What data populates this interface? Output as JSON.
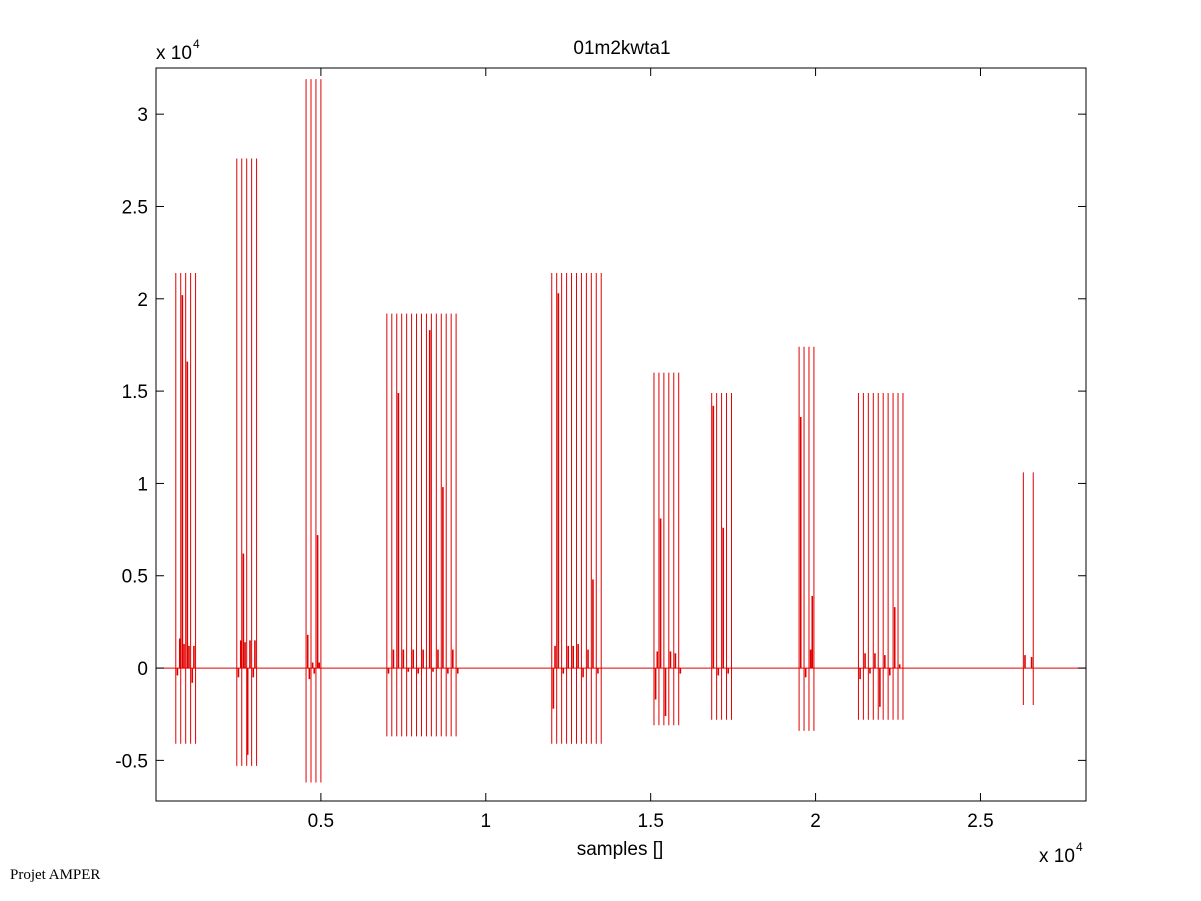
{
  "footer": "Projet AMPER",
  "chart_data": {
    "type": "line",
    "title": "01m2kwta1",
    "xlabel": "samples []",
    "ylabel": "",
    "x_multiplier": "x 10",
    "x_multiplier_exp": "4",
    "y_multiplier": "x 10",
    "y_multiplier_exp": "4",
    "xlim": [
      0,
      28200
    ],
    "ylim": [
      -7200,
      32500
    ],
    "xticks": [
      5000,
      10000,
      15000,
      20000,
      25000
    ],
    "xtick_labels": [
      "0.5",
      "1",
      "1.5",
      "2",
      "2.5"
    ],
    "yticks": [
      -5000,
      0,
      5000,
      10000,
      15000,
      20000,
      25000,
      30000
    ],
    "ytick_labels": [
      "-0.5",
      "0",
      "0.5",
      "1",
      "1.5",
      "2",
      "2.5",
      "3"
    ],
    "grid": false,
    "line_color": "#e00000",
    "axis_color": "#000000",
    "baseline": 0,
    "series": [
      {
        "values": "vertical spike bursts (full-scale segments) and an inner waveform",
        "bursts": [
          {
            "x": [
              600,
              750,
              900,
              1050,
              1200
            ],
            "top": 21400,
            "bottom": -4100
          },
          {
            "x": [
              2450,
              2600,
              2750,
              2900,
              3050
            ],
            "top": 27600,
            "bottom": -5300
          },
          {
            "x": [
              4550,
              4700,
              4850,
              5000
            ],
            "top": 31900,
            "bottom": -6200
          },
          {
            "x": [
              7000,
              7150,
              7300,
              7450,
              7600,
              7750,
              7900,
              8050,
              8200,
              8350,
              8500,
              8650,
              8800,
              8950,
              9100
            ],
            "top": 19200,
            "bottom": -3700
          },
          {
            "x": [
              12000,
              12150,
              12300,
              12450,
              12600,
              12750,
              12900,
              13050,
              13200,
              13350,
              13500
            ],
            "top": 21400,
            "bottom": -4100
          },
          {
            "x": [
              15100,
              15250,
              15400,
              15550,
              15700,
              15850
            ],
            "top": 16000,
            "bottom": -3100
          },
          {
            "x": [
              16850,
              17000,
              17150,
              17300,
              17450
            ],
            "top": 14900,
            "bottom": -2800
          },
          {
            "x": [
              19500,
              19650,
              19800,
              19950
            ],
            "top": 17400,
            "bottom": -3400
          },
          {
            "x": [
              21300,
              21450,
              21600,
              21750,
              21900,
              22050,
              22200,
              22350,
              22500,
              22650
            ],
            "top": 14900,
            "bottom": -2800
          },
          {
            "x": [
              26300,
              26600
            ],
            "top": 10600,
            "bottom": -2000
          }
        ],
        "spikes": [
          {
            "x": 650,
            "v": -400
          },
          {
            "x": 720,
            "v": 1600
          },
          {
            "x": 800,
            "v": 20200
          },
          {
            "x": 850,
            "v": 1300
          },
          {
            "x": 950,
            "v": 16600
          },
          {
            "x": 1000,
            "v": 1200
          },
          {
            "x": 1100,
            "v": -800
          },
          {
            "x": 1150,
            "v": 1200
          },
          {
            "x": 2500,
            "v": -500
          },
          {
            "x": 2570,
            "v": 1500
          },
          {
            "x": 2650,
            "v": 6200
          },
          {
            "x": 2700,
            "v": 1400
          },
          {
            "x": 2780,
            "v": -4700
          },
          {
            "x": 2850,
            "v": 1500
          },
          {
            "x": 2950,
            "v": -500
          },
          {
            "x": 3000,
            "v": 1500
          },
          {
            "x": 4600,
            "v": 1800
          },
          {
            "x": 4650,
            "v": -600
          },
          {
            "x": 4750,
            "v": 300
          },
          {
            "x": 4800,
            "v": -300
          },
          {
            "x": 4900,
            "v": 7200
          },
          {
            "x": 4950,
            "v": 300
          },
          {
            "x": 7050,
            "v": -300
          },
          {
            "x": 7200,
            "v": 1000
          },
          {
            "x": 7350,
            "v": 14900
          },
          {
            "x": 7500,
            "v": 1000
          },
          {
            "x": 7650,
            "v": -200
          },
          {
            "x": 7800,
            "v": 1000
          },
          {
            "x": 7950,
            "v": -300
          },
          {
            "x": 8100,
            "v": 1000
          },
          {
            "x": 8300,
            "v": 18300
          },
          {
            "x": 8400,
            "v": -200
          },
          {
            "x": 8550,
            "v": 1000
          },
          {
            "x": 8700,
            "v": 9800
          },
          {
            "x": 8850,
            "v": -300
          },
          {
            "x": 9000,
            "v": 1000
          },
          {
            "x": 9150,
            "v": -300
          },
          {
            "x": 12050,
            "v": -2200
          },
          {
            "x": 12100,
            "v": 1200
          },
          {
            "x": 12200,
            "v": 20300
          },
          {
            "x": 12350,
            "v": -300
          },
          {
            "x": 12500,
            "v": 1200
          },
          {
            "x": 12650,
            "v": 1200
          },
          {
            "x": 12800,
            "v": 1300
          },
          {
            "x": 12950,
            "v": -500
          },
          {
            "x": 13100,
            "v": 1000
          },
          {
            "x": 13250,
            "v": 4800
          },
          {
            "x": 13400,
            "v": -300
          },
          {
            "x": 15150,
            "v": -1700
          },
          {
            "x": 15200,
            "v": 900
          },
          {
            "x": 15300,
            "v": 8100
          },
          {
            "x": 15450,
            "v": -2600
          },
          {
            "x": 15600,
            "v": 900
          },
          {
            "x": 15750,
            "v": 800
          },
          {
            "x": 15900,
            "v": -300
          },
          {
            "x": 16900,
            "v": 14200
          },
          {
            "x": 17050,
            "v": -400
          },
          {
            "x": 17200,
            "v": 7600
          },
          {
            "x": 17350,
            "v": -300
          },
          {
            "x": 19550,
            "v": 13600
          },
          {
            "x": 19700,
            "v": -500
          },
          {
            "x": 19850,
            "v": 1000
          },
          {
            "x": 19900,
            "v": 3900
          },
          {
            "x": 21350,
            "v": -600
          },
          {
            "x": 21500,
            "v": 800
          },
          {
            "x": 21650,
            "v": -300
          },
          {
            "x": 21800,
            "v": 800
          },
          {
            "x": 21950,
            "v": -2100
          },
          {
            "x": 22100,
            "v": 700
          },
          {
            "x": 22250,
            "v": -400
          },
          {
            "x": 22400,
            "v": 3300
          },
          {
            "x": 22550,
            "v": 200
          },
          {
            "x": 26350,
            "v": 700
          },
          {
            "x": 26550,
            "v": 600
          }
        ]
      }
    ]
  }
}
